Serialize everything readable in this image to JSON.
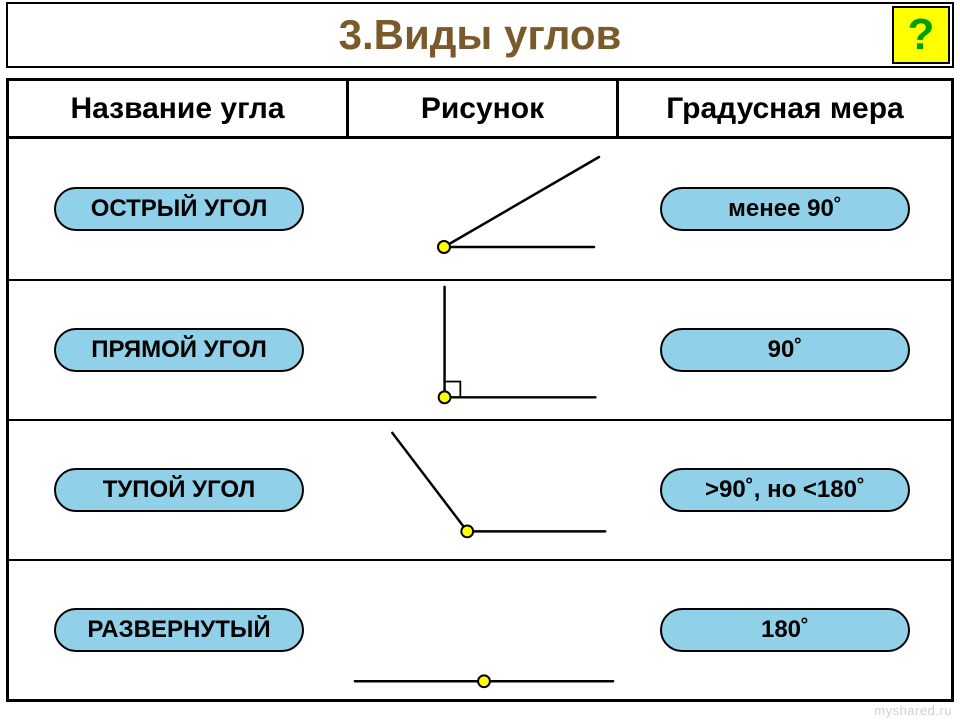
{
  "title": {
    "text": "3.Виды  углов",
    "color": "#7a5a2a",
    "fontsize": 42
  },
  "help": {
    "symbol": "?",
    "bg": "#ffff00",
    "fg": "#00a000"
  },
  "headers": {
    "name": "Название угла",
    "drawing": "Рисунок",
    "measure": "Градусная мера"
  },
  "pill_bg": "#90d0e8",
  "vertex_fill": "#ffff00",
  "vertex_radius": 6,
  "stroke": "#000000",
  "stroke_width": 2.5,
  "rows": [
    {
      "name": "ОСТРЫЙ УГОЛ",
      "measure": "менее 90˚",
      "angle": {
        "type": "two-ray",
        "vertex": [
          95,
          108
        ],
        "ray1_end": [
          245,
          108
        ],
        "ray2_end": [
          250,
          18
        ],
        "square": false
      }
    },
    {
      "name": "ПРЯМОЙ УГОЛ",
      "measure": "90˚",
      "angle": {
        "type": "two-ray",
        "vertex": [
          95,
          118
        ],
        "ray1_end": [
          248,
          118
        ],
        "ray2_end": [
          95,
          6
        ],
        "square": true,
        "square_size": 16
      }
    },
    {
      "name": "ТУПОЙ УГОЛ",
      "measure": ">90˚, но <180˚",
      "angle": {
        "type": "two-ray",
        "vertex": [
          118,
          112
        ],
        "ray1_end": [
          258,
          112
        ],
        "ray2_end": [
          42,
          12
        ],
        "square": false
      }
    },
    {
      "name": "РАЗВЕРНУТЫЙ",
      "measure": "180˚",
      "angle": {
        "type": "straight",
        "vertex": [
          135,
          122
        ],
        "left_end": [
          4,
          122
        ],
        "right_end": [
          266,
          122
        ]
      }
    }
  ],
  "watermark": "myshared.ru"
}
